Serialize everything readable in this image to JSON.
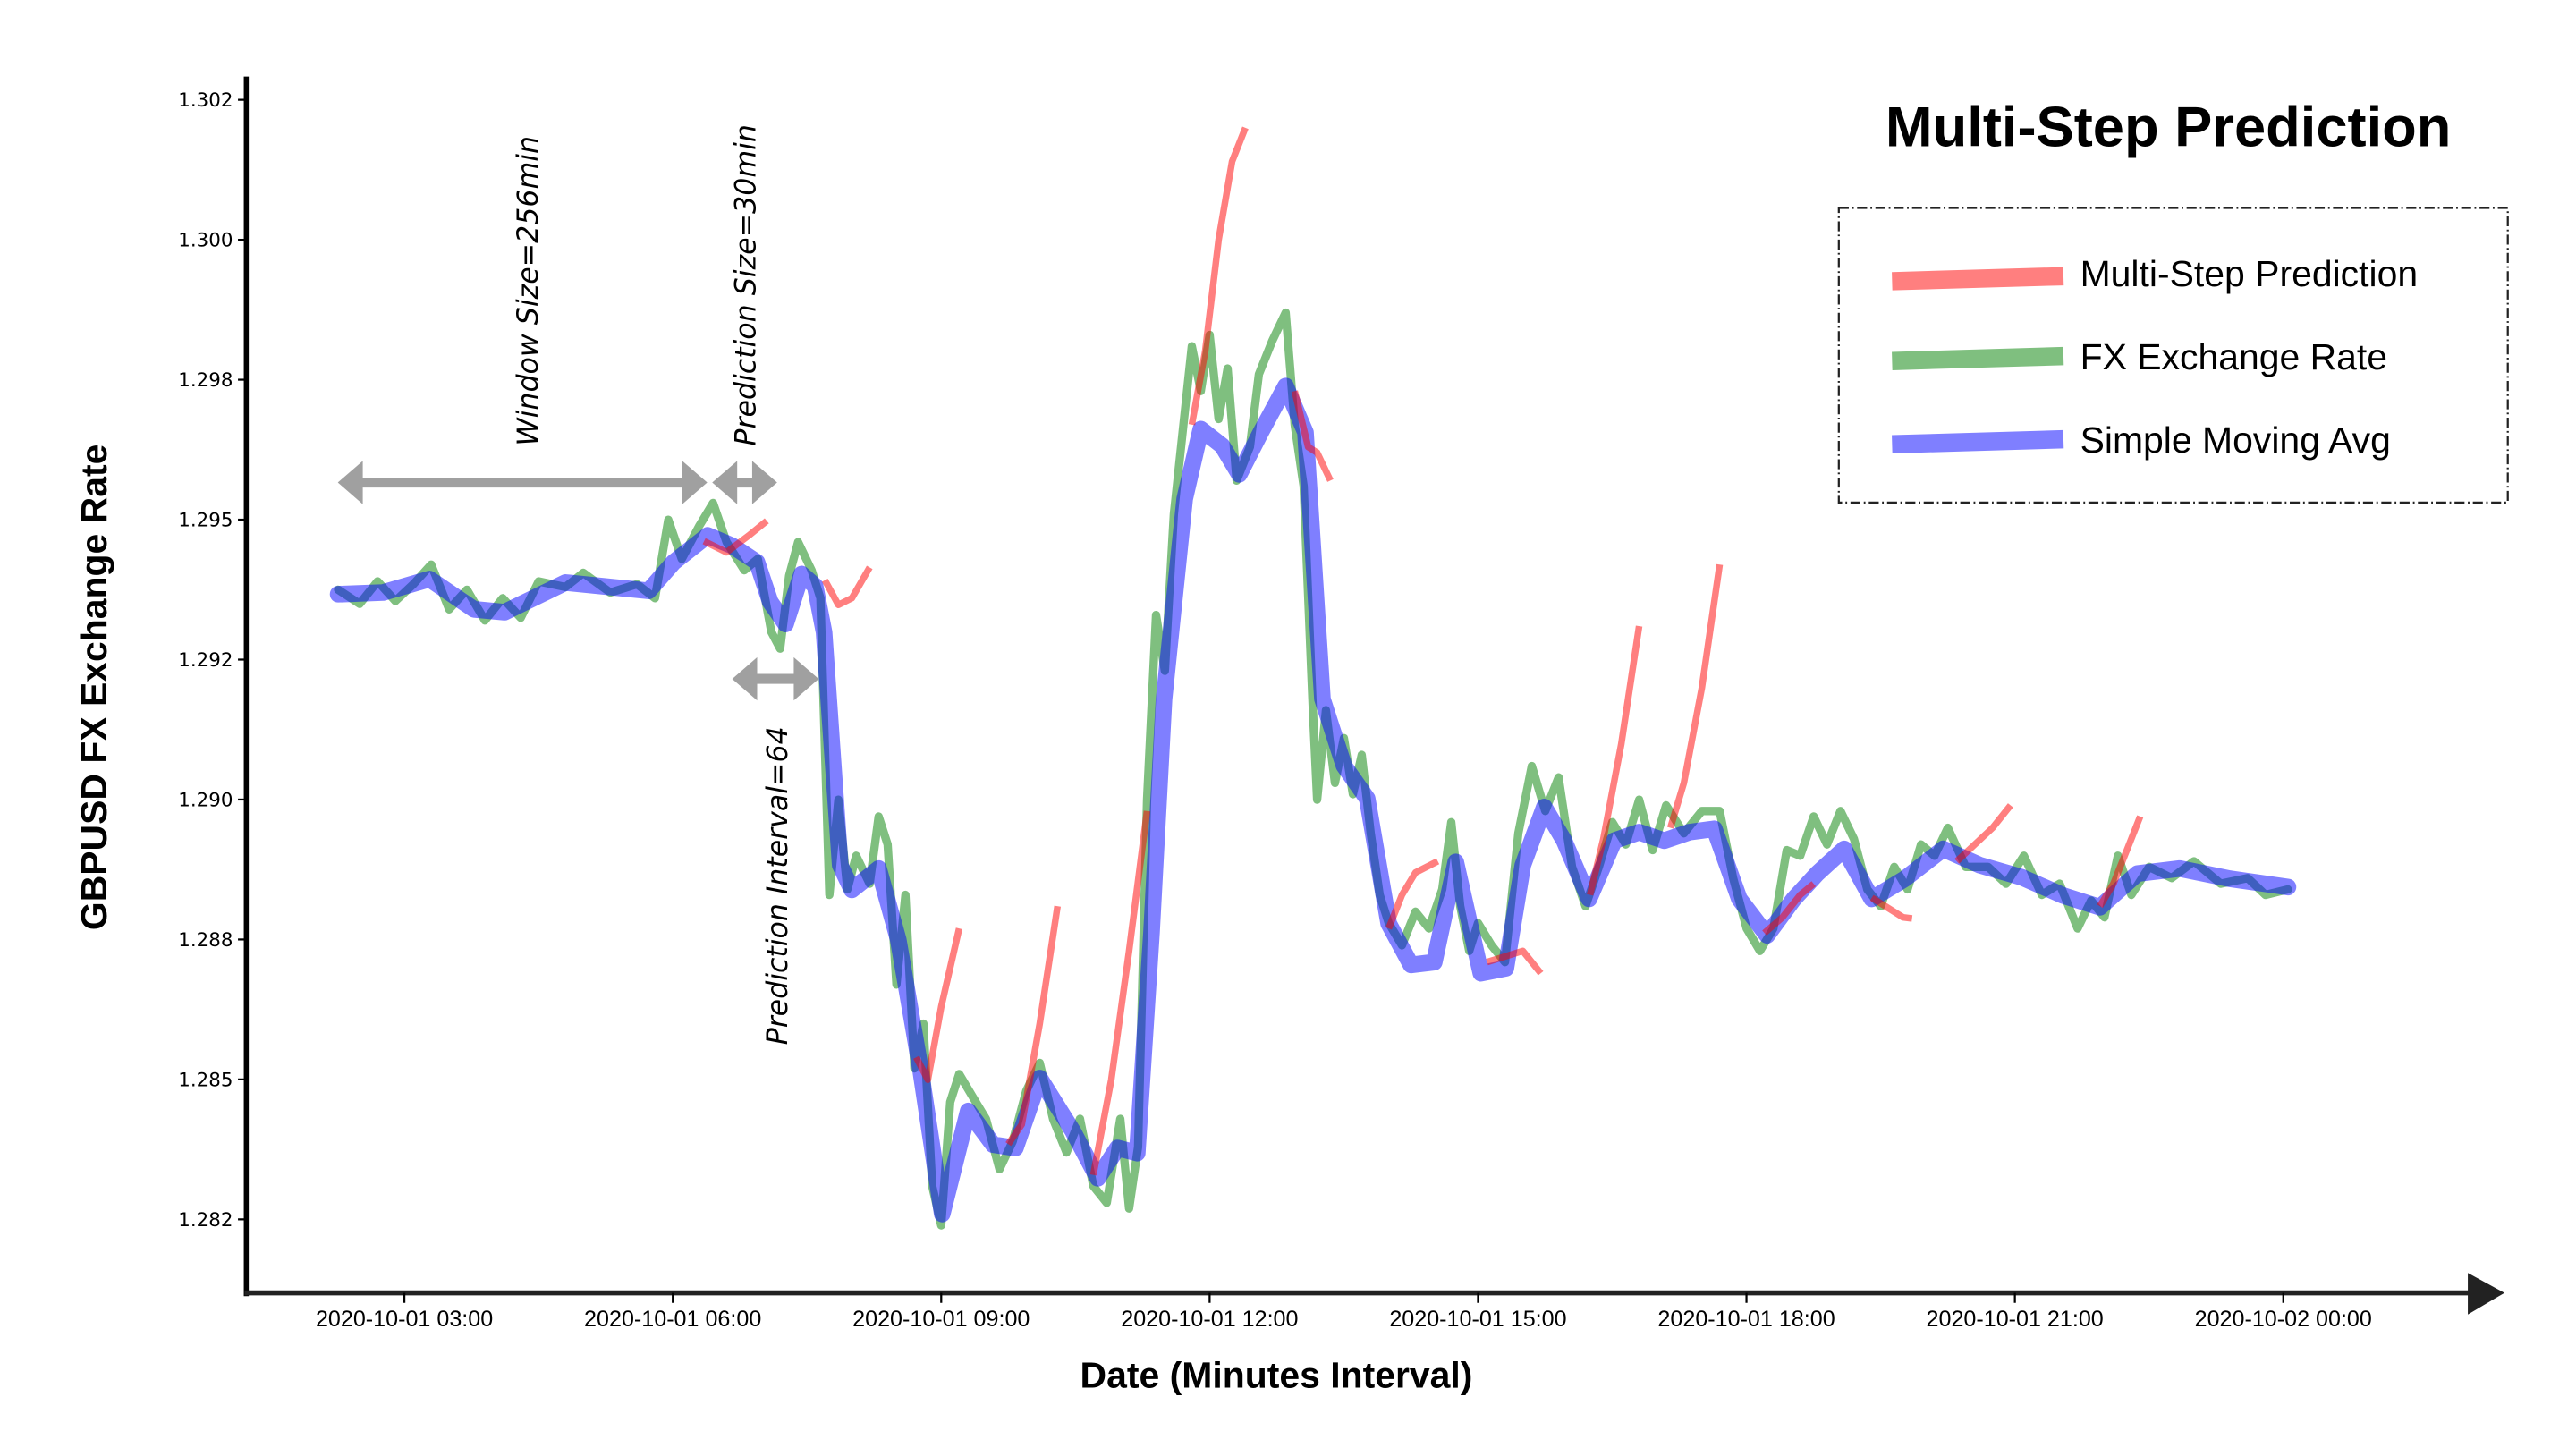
{
  "chart_data": {
    "type": "line",
    "title": "Multi-Step Prediction",
    "xlabel": "Date (Minutes Interval)",
    "ylabel": "GBPUSD FX Exchange Rate",
    "x_ticks": [
      "2020-10-01 03:00",
      "2020-10-01 06:00",
      "2020-10-01 09:00",
      "2020-10-01 12:00",
      "2020-10-01 15:00",
      "2020-10-01 18:00",
      "2020-10-01 21:00",
      "2020-10-02 00:00"
    ],
    "y_ticks": [
      "1.302",
      "1.300",
      "1.298",
      "1.295",
      "1.292",
      "1.290",
      "1.288",
      "1.285",
      "1.282"
    ],
    "ylim": [
      1.2805,
      1.3025
    ],
    "x_unit": "hours since 2020-10-01 00:00",
    "legend": [
      {
        "label": "Multi-Step Prediction",
        "color": "#FF7F7F"
      },
      {
        "label": "FX Exchange Rate",
        "color": "#7FBF7F"
      },
      {
        "label": "Simple Moving Avg",
        "color": "#7F7FFF"
      }
    ],
    "legend_position": "upper right",
    "grid": false,
    "series": [
      {
        "name": "Simple Moving Avg",
        "color": "#7F7FFF",
        "points": [
          [
            2.26,
            1.29317
          ],
          [
            2.76,
            1.2932
          ],
          [
            3.28,
            1.29344
          ],
          [
            3.78,
            1.2929
          ],
          [
            4.12,
            1.29285
          ],
          [
            4.8,
            1.29338
          ],
          [
            5.73,
            1.29323
          ],
          [
            6.01,
            1.29374
          ],
          [
            6.39,
            1.29422
          ],
          [
            6.66,
            1.29404
          ],
          [
            6.94,
            1.29374
          ],
          [
            7.09,
            1.29303
          ],
          [
            7.26,
            1.29264
          ],
          [
            7.44,
            1.29353
          ],
          [
            7.59,
            1.29332
          ],
          [
            7.69,
            1.29249
          ],
          [
            7.87,
            1.28833
          ],
          [
            8.0,
            1.28789
          ],
          [
            8.3,
            1.28827
          ],
          [
            8.52,
            1.287
          ],
          [
            8.76,
            1.28477
          ],
          [
            9.01,
            1.2821
          ],
          [
            9.3,
            1.28394
          ],
          [
            9.58,
            1.28334
          ],
          [
            9.83,
            1.28328
          ],
          [
            10.1,
            1.28453
          ],
          [
            10.47,
            1.28358
          ],
          [
            10.75,
            1.28274
          ],
          [
            10.97,
            1.28328
          ],
          [
            11.19,
            1.28319
          ],
          [
            11.35,
            1.28714
          ],
          [
            11.49,
            1.2913
          ],
          [
            11.72,
            1.29487
          ],
          [
            11.9,
            1.29612
          ],
          [
            12.14,
            1.29582
          ],
          [
            12.33,
            1.29531
          ],
          [
            12.57,
            1.29606
          ],
          [
            12.85,
            1.29689
          ],
          [
            13.07,
            1.29606
          ],
          [
            13.26,
            1.2913
          ],
          [
            13.5,
            1.29011
          ],
          [
            13.76,
            1.28952
          ],
          [
            14.0,
            1.28729
          ],
          [
            14.25,
            1.28655
          ],
          [
            14.51,
            1.2866
          ],
          [
            14.75,
            1.28839
          ],
          [
            15.03,
            1.2864
          ],
          [
            15.31,
            1.28649
          ],
          [
            15.5,
            1.28833
          ],
          [
            15.74,
            1.28937
          ],
          [
            15.96,
            1.28877
          ],
          [
            16.24,
            1.28773
          ],
          [
            16.52,
            1.28877
          ],
          [
            16.8,
            1.28892
          ],
          [
            17.08,
            1.28877
          ],
          [
            17.36,
            1.28892
          ],
          [
            17.64,
            1.28898
          ],
          [
            17.92,
            1.28773
          ],
          [
            18.23,
            1.28708
          ],
          [
            18.53,
            1.28773
          ],
          [
            18.79,
            1.28818
          ],
          [
            19.09,
            1.28862
          ],
          [
            19.4,
            1.28773
          ],
          [
            19.77,
            1.28809
          ],
          [
            20.2,
            1.28862
          ],
          [
            20.61,
            1.28833
          ],
          [
            21.07,
            1.28812
          ],
          [
            21.54,
            1.28779
          ],
          [
            21.95,
            1.28758
          ],
          [
            22.37,
            1.28818
          ],
          [
            22.84,
            1.28827
          ],
          [
            23.4,
            1.28809
          ],
          [
            24.05,
            1.28794
          ]
        ]
      },
      {
        "name": "FX Exchange Rate",
        "color": "#7FBF7F",
        "points": [
          [
            2.26,
            1.29325
          ],
          [
            2.5,
            1.293
          ],
          [
            2.7,
            1.2934
          ],
          [
            2.9,
            1.29305
          ],
          [
            3.1,
            1.29335
          ],
          [
            3.3,
            1.2937
          ],
          [
            3.5,
            1.2929
          ],
          [
            3.7,
            1.29325
          ],
          [
            3.9,
            1.2927
          ],
          [
            4.1,
            1.2931
          ],
          [
            4.3,
            1.29275
          ],
          [
            4.5,
            1.2934
          ],
          [
            4.8,
            1.2933
          ],
          [
            5.0,
            1.29355
          ],
          [
            5.3,
            1.2932
          ],
          [
            5.6,
            1.29335
          ],
          [
            5.8,
            1.2931
          ],
          [
            5.95,
            1.2945
          ],
          [
            6.1,
            1.2938
          ],
          [
            6.3,
            1.2944
          ],
          [
            6.45,
            1.2948
          ],
          [
            6.6,
            1.2941
          ],
          [
            6.8,
            1.2936
          ],
          [
            6.95,
            1.2938
          ],
          [
            7.1,
            1.2925
          ],
          [
            7.2,
            1.2922
          ],
          [
            7.3,
            1.2935
          ],
          [
            7.4,
            1.2941
          ],
          [
            7.55,
            1.2936
          ],
          [
            7.65,
            1.2931
          ],
          [
            7.75,
            1.2878
          ],
          [
            7.85,
            1.2895
          ],
          [
            7.95,
            1.2879
          ],
          [
            8.05,
            1.2885
          ],
          [
            8.2,
            1.288
          ],
          [
            8.3,
            1.2892
          ],
          [
            8.4,
            1.2887
          ],
          [
            8.5,
            1.2862
          ],
          [
            8.6,
            1.2878
          ],
          [
            8.7,
            1.2847
          ],
          [
            8.8,
            1.2855
          ],
          [
            8.9,
            1.2826
          ],
          [
            9.0,
            1.2819
          ],
          [
            9.1,
            1.2841
          ],
          [
            9.2,
            1.2846
          ],
          [
            9.35,
            1.2842
          ],
          [
            9.5,
            1.2838
          ],
          [
            9.65,
            1.2829
          ],
          [
            9.8,
            1.2834
          ],
          [
            9.95,
            1.2843
          ],
          [
            10.1,
            1.2848
          ],
          [
            10.25,
            1.2838
          ],
          [
            10.4,
            1.2832
          ],
          [
            10.55,
            1.2838
          ],
          [
            10.7,
            1.2826
          ],
          [
            10.85,
            1.2823
          ],
          [
            11.0,
            1.2838
          ],
          [
            11.1,
            1.2822
          ],
          [
            11.2,
            1.2833
          ],
          [
            11.3,
            1.2895
          ],
          [
            11.4,
            1.2928
          ],
          [
            11.5,
            1.2918
          ],
          [
            11.6,
            1.2946
          ],
          [
            11.7,
            1.2961
          ],
          [
            11.8,
            1.2976
          ],
          [
            11.9,
            1.2968
          ],
          [
            12.0,
            1.2978
          ],
          [
            12.1,
            1.2963
          ],
          [
            12.2,
            1.2972
          ],
          [
            12.3,
            1.2952
          ],
          [
            12.45,
            1.2958
          ],
          [
            12.55,
            1.2971
          ],
          [
            12.7,
            1.2977
          ],
          [
            12.85,
            1.2982
          ],
          [
            12.95,
            1.2962
          ],
          [
            13.05,
            1.2951
          ],
          [
            13.15,
            1.2912
          ],
          [
            13.2,
            1.2895
          ],
          [
            13.3,
            1.2911
          ],
          [
            13.4,
            1.2898
          ],
          [
            13.5,
            1.2906
          ],
          [
            13.6,
            1.2896
          ],
          [
            13.7,
            1.2903
          ],
          [
            13.8,
            1.2889
          ],
          [
            13.9,
            1.2878
          ],
          [
            14.0,
            1.2873
          ],
          [
            14.15,
            1.2869
          ],
          [
            14.3,
            1.2875
          ],
          [
            14.45,
            1.2872
          ],
          [
            14.6,
            1.2879
          ],
          [
            14.7,
            1.2891
          ],
          [
            14.8,
            1.2876
          ],
          [
            14.9,
            1.2868
          ],
          [
            15.0,
            1.2873
          ],
          [
            15.15,
            1.2869
          ],
          [
            15.3,
            1.2866
          ],
          [
            15.45,
            1.2889
          ],
          [
            15.6,
            1.2901
          ],
          [
            15.75,
            1.2893
          ],
          [
            15.9,
            1.2899
          ],
          [
            16.05,
            1.2883
          ],
          [
            16.2,
            1.2876
          ],
          [
            16.35,
            1.2883
          ],
          [
            16.5,
            1.2891
          ],
          [
            16.65,
            1.2887
          ],
          [
            16.8,
            1.2895
          ],
          [
            16.95,
            1.2886
          ],
          [
            17.1,
            1.2894
          ],
          [
            17.3,
            1.2889
          ],
          [
            17.5,
            1.2893
          ],
          [
            17.7,
            1.2893
          ],
          [
            17.85,
            1.2881
          ],
          [
            18.0,
            1.2872
          ],
          [
            18.15,
            1.2868
          ],
          [
            18.3,
            1.2872
          ],
          [
            18.45,
            1.2886
          ],
          [
            18.6,
            1.2885
          ],
          [
            18.75,
            1.2892
          ],
          [
            18.9,
            1.2887
          ],
          [
            19.05,
            1.2893
          ],
          [
            19.2,
            1.2888
          ],
          [
            19.35,
            1.2879
          ],
          [
            19.5,
            1.2876
          ],
          [
            19.65,
            1.2883
          ],
          [
            19.8,
            1.2879
          ],
          [
            19.95,
            1.2887
          ],
          [
            20.1,
            1.2885
          ],
          [
            20.25,
            1.289
          ],
          [
            20.45,
            1.2883
          ],
          [
            20.7,
            1.2883
          ],
          [
            20.9,
            1.288
          ],
          [
            21.1,
            1.2885
          ],
          [
            21.3,
            1.2878
          ],
          [
            21.5,
            1.288
          ],
          [
            21.7,
            1.2872
          ],
          [
            21.85,
            1.2877
          ],
          [
            22.0,
            1.2874
          ],
          [
            22.15,
            1.2885
          ],
          [
            22.3,
            1.2878
          ],
          [
            22.5,
            1.2883
          ],
          [
            22.75,
            1.2881
          ],
          [
            23.0,
            1.2884
          ],
          [
            23.3,
            1.288
          ],
          [
            23.6,
            1.2881
          ],
          [
            23.8,
            1.2878
          ],
          [
            24.05,
            1.2879
          ]
        ]
      }
    ],
    "predictions": [
      [
        [
          6.35,
          1.29412
        ],
        [
          6.6,
          1.29392
        ],
        [
          6.85,
          1.29422
        ],
        [
          7.05,
          1.29448
        ]
      ],
      [
        [
          7.7,
          1.29342
        ],
        [
          7.85,
          1.29298
        ],
        [
          8.0,
          1.2931
        ],
        [
          8.2,
          1.29365
        ]
      ],
      [
        [
          8.72,
          1.2849
        ],
        [
          8.85,
          1.2845
        ],
        [
          9.0,
          1.2858
        ],
        [
          9.2,
          1.2872
        ]
      ],
      [
        [
          9.75,
          1.28335
        ],
        [
          9.9,
          1.2837
        ],
        [
          10.1,
          1.2855
        ],
        [
          10.3,
          1.2876
        ]
      ],
      [
        [
          10.7,
          1.2828
        ],
        [
          10.9,
          1.2845
        ],
        [
          11.1,
          1.2868
        ],
        [
          11.3,
          1.2893
        ]
      ],
      [
        [
          11.8,
          1.2962
        ],
        [
          11.95,
          1.2975
        ],
        [
          12.1,
          1.2995
        ],
        [
          12.25,
          1.3009
        ],
        [
          12.4,
          1.3015
        ]
      ],
      [
        [
          12.95,
          1.2968
        ],
        [
          13.1,
          1.2958
        ],
        [
          13.2,
          1.2957
        ],
        [
          13.35,
          1.2952
        ]
      ],
      [
        [
          14.0,
          1.2872
        ],
        [
          14.15,
          1.2878
        ],
        [
          14.3,
          1.2882
        ],
        [
          14.55,
          1.2884
        ]
      ],
      [
        [
          15.1,
          1.2866
        ],
        [
          15.3,
          1.2867
        ],
        [
          15.5,
          1.2868
        ],
        [
          15.7,
          1.2864
        ]
      ],
      [
        [
          16.25,
          1.2878
        ],
        [
          16.4,
          1.2888
        ],
        [
          16.6,
          1.2905
        ],
        [
          16.8,
          1.2926
        ]
      ],
      [
        [
          17.15,
          1.289
        ],
        [
          17.3,
          1.2898
        ],
        [
          17.5,
          1.2915
        ],
        [
          17.7,
          1.2937
        ]
      ],
      [
        [
          18.2,
          1.28712
        ],
        [
          18.4,
          1.2874
        ],
        [
          18.6,
          1.2878
        ],
        [
          18.75,
          1.288
        ]
      ],
      [
        [
          19.4,
          1.28775
        ],
        [
          19.55,
          1.2876
        ],
        [
          19.75,
          1.2874
        ],
        [
          19.85,
          1.28738
        ]
      ],
      [
        [
          20.35,
          1.2884
        ],
        [
          20.55,
          1.2887
        ],
        [
          20.75,
          1.289
        ],
        [
          20.95,
          1.2894
        ]
      ],
      [
        [
          21.95,
          1.2876
        ],
        [
          22.1,
          1.288
        ],
        [
          22.25,
          1.2886
        ],
        [
          22.4,
          1.2892
        ]
      ]
    ]
  },
  "annotations": {
    "window_size": "Window Size=256min",
    "prediction_size": "Prediction Size=30min",
    "prediction_interval": "Prediction Interval=64",
    "arrow_color": "#A0A0A0"
  }
}
